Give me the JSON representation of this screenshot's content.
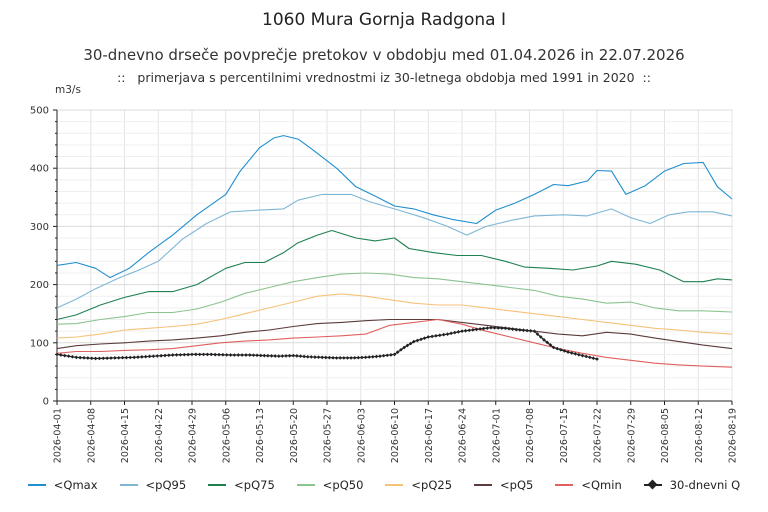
{
  "title": "1060 Mura Gornja Radgona I",
  "subtitle": "30-dnevno drseče povprečje pretokov v obdobju med 01.04.2026 in 22.07.2026",
  "subtitle2": "::   primerjava s percentilnimi vrednostmi iz 30-letnega obdobja med 1991 in 2020  ::",
  "chart_data": {
    "type": "line",
    "ylabel": "m3/s",
    "ylim": [
      0,
      500
    ],
    "yticks": [
      "0",
      "100",
      "200",
      "300",
      "400",
      "500"
    ],
    "x_start": "2026-04-01",
    "x_end": "2026-08-19",
    "xticks": [
      "2026-04-01",
      "2026-04-08",
      "2026-04-15",
      "2026-04-22",
      "2026-04-29",
      "2026-05-06",
      "2026-05-13",
      "2026-05-20",
      "2026-05-27",
      "2026-06-03",
      "2026-06-10",
      "2026-06-17",
      "2026-06-24",
      "2026-07-01",
      "2026-07-08",
      "2026-07-15",
      "2026-07-22",
      "2026-07-29",
      "2026-08-05",
      "2026-08-12",
      "2026-08-19"
    ],
    "grid": true,
    "legend_position": "bottom",
    "series": [
      {
        "name": "<Qmax",
        "color": "#1f8fcf",
        "points": [
          [
            "2026-04-01",
            233
          ],
          [
            "2026-04-05",
            238
          ],
          [
            "2026-04-09",
            228
          ],
          [
            "2026-04-12",
            212
          ],
          [
            "2026-04-16",
            228
          ],
          [
            "2026-04-20",
            255
          ],
          [
            "2026-04-25",
            285
          ],
          [
            "2026-04-30",
            320
          ],
          [
            "2026-05-06",
            355
          ],
          [
            "2026-05-09",
            395
          ],
          [
            "2026-05-13",
            435
          ],
          [
            "2026-05-16",
            452
          ],
          [
            "2026-05-18",
            456
          ],
          [
            "2026-05-21",
            450
          ],
          [
            "2026-05-24",
            432
          ],
          [
            "2026-05-29",
            400
          ],
          [
            "2026-06-02",
            368
          ],
          [
            "2026-06-06",
            352
          ],
          [
            "2026-06-10",
            335
          ],
          [
            "2026-06-14",
            330
          ],
          [
            "2026-06-18",
            320
          ],
          [
            "2026-06-22",
            312
          ],
          [
            "2026-06-27",
            305
          ],
          [
            "2026-07-01",
            328
          ],
          [
            "2026-07-05",
            340
          ],
          [
            "2026-07-09",
            355
          ],
          [
            "2026-07-13",
            372
          ],
          [
            "2026-07-16",
            370
          ],
          [
            "2026-07-20",
            378
          ],
          [
            "2026-07-22",
            396
          ],
          [
            "2026-07-25",
            395
          ],
          [
            "2026-07-28",
            355
          ],
          [
            "2026-08-01",
            370
          ],
          [
            "2026-08-05",
            395
          ],
          [
            "2026-08-09",
            408
          ],
          [
            "2026-08-13",
            410
          ],
          [
            "2026-08-16",
            368
          ],
          [
            "2026-08-19",
            347
          ]
        ]
      },
      {
        "name": "<pQ95",
        "color": "#7fb6d6",
        "points": [
          [
            "2026-04-01",
            160
          ],
          [
            "2026-04-05",
            175
          ],
          [
            "2026-04-09",
            193
          ],
          [
            "2026-04-14",
            212
          ],
          [
            "2026-04-18",
            225
          ],
          [
            "2026-04-22",
            240
          ],
          [
            "2026-04-27",
            278
          ],
          [
            "2026-05-02",
            305
          ],
          [
            "2026-05-07",
            325
          ],
          [
            "2026-05-13",
            328
          ],
          [
            "2026-05-18",
            330
          ],
          [
            "2026-05-21",
            345
          ],
          [
            "2026-05-26",
            355
          ],
          [
            "2026-06-01",
            355
          ],
          [
            "2026-06-05",
            342
          ],
          [
            "2026-06-10",
            330
          ],
          [
            "2026-06-16",
            315
          ],
          [
            "2026-06-21",
            300
          ],
          [
            "2026-06-25",
            285
          ],
          [
            "2026-06-29",
            300
          ],
          [
            "2026-07-04",
            310
          ],
          [
            "2026-07-09",
            318
          ],
          [
            "2026-07-15",
            320
          ],
          [
            "2026-07-20",
            318
          ],
          [
            "2026-07-25",
            330
          ],
          [
            "2026-07-29",
            315
          ],
          [
            "2026-08-02",
            305
          ],
          [
            "2026-08-06",
            320
          ],
          [
            "2026-08-10",
            325
          ],
          [
            "2026-08-15",
            325
          ],
          [
            "2026-08-19",
            318
          ]
        ]
      },
      {
        "name": "<pQ75",
        "color": "#1e8050",
        "points": [
          [
            "2026-04-01",
            140
          ],
          [
            "2026-04-05",
            148
          ],
          [
            "2026-04-10",
            165
          ],
          [
            "2026-04-15",
            178
          ],
          [
            "2026-04-20",
            188
          ],
          [
            "2026-04-25",
            188
          ],
          [
            "2026-04-30",
            200
          ],
          [
            "2026-05-06",
            228
          ],
          [
            "2026-05-10",
            238
          ],
          [
            "2026-05-14",
            238
          ],
          [
            "2026-05-18",
            255
          ],
          [
            "2026-05-21",
            272
          ],
          [
            "2026-05-25",
            285
          ],
          [
            "2026-05-28",
            293
          ],
          [
            "2026-06-02",
            280
          ],
          [
            "2026-06-06",
            275
          ],
          [
            "2026-06-10",
            280
          ],
          [
            "2026-06-13",
            262
          ],
          [
            "2026-06-18",
            255
          ],
          [
            "2026-06-23",
            250
          ],
          [
            "2026-06-28",
            250
          ],
          [
            "2026-07-03",
            240
          ],
          [
            "2026-07-07",
            230
          ],
          [
            "2026-07-12",
            228
          ],
          [
            "2026-07-17",
            225
          ],
          [
            "2026-07-22",
            232
          ],
          [
            "2026-07-25",
            240
          ],
          [
            "2026-07-30",
            235
          ],
          [
            "2026-08-04",
            225
          ],
          [
            "2026-08-09",
            205
          ],
          [
            "2026-08-13",
            205
          ],
          [
            "2026-08-16",
            210
          ],
          [
            "2026-08-19",
            208
          ]
        ]
      },
      {
        "name": "<pQ50",
        "color": "#8bc48f",
        "points": [
          [
            "2026-04-01",
            132
          ],
          [
            "2026-04-05",
            133
          ],
          [
            "2026-04-10",
            140
          ],
          [
            "2026-04-15",
            145
          ],
          [
            "2026-04-20",
            152
          ],
          [
            "2026-04-25",
            152
          ],
          [
            "2026-04-30",
            158
          ],
          [
            "2026-05-05",
            170
          ],
          [
            "2026-05-10",
            185
          ],
          [
            "2026-05-15",
            195
          ],
          [
            "2026-05-20",
            205
          ],
          [
            "2026-05-25",
            212
          ],
          [
            "2026-05-30",
            218
          ],
          [
            "2026-06-04",
            220
          ],
          [
            "2026-06-09",
            218
          ],
          [
            "2026-06-14",
            212
          ],
          [
            "2026-06-19",
            210
          ],
          [
            "2026-06-24",
            205
          ],
          [
            "2026-06-29",
            200
          ],
          [
            "2026-07-04",
            195
          ],
          [
            "2026-07-09",
            190
          ],
          [
            "2026-07-14",
            180
          ],
          [
            "2026-07-19",
            175
          ],
          [
            "2026-07-24",
            168
          ],
          [
            "2026-07-29",
            170
          ],
          [
            "2026-08-03",
            160
          ],
          [
            "2026-08-08",
            155
          ],
          [
            "2026-08-13",
            155
          ],
          [
            "2026-08-19",
            153
          ]
        ]
      },
      {
        "name": "<pQ25",
        "color": "#f6c27a",
        "points": [
          [
            "2026-04-01",
            108
          ],
          [
            "2026-04-05",
            110
          ],
          [
            "2026-04-10",
            115
          ],
          [
            "2026-04-15",
            122
          ],
          [
            "2026-04-20",
            125
          ],
          [
            "2026-04-25",
            128
          ],
          [
            "2026-04-30",
            132
          ],
          [
            "2026-05-05",
            140
          ],
          [
            "2026-05-10",
            150
          ],
          [
            "2026-05-15",
            160
          ],
          [
            "2026-05-20",
            170
          ],
          [
            "2026-05-25",
            180
          ],
          [
            "2026-05-30",
            184
          ],
          [
            "2026-06-04",
            180
          ],
          [
            "2026-06-09",
            174
          ],
          [
            "2026-06-14",
            168
          ],
          [
            "2026-06-19",
            165
          ],
          [
            "2026-06-24",
            165
          ],
          [
            "2026-06-29",
            160
          ],
          [
            "2026-07-04",
            155
          ],
          [
            "2026-07-09",
            150
          ],
          [
            "2026-07-14",
            145
          ],
          [
            "2026-07-19",
            140
          ],
          [
            "2026-07-24",
            135
          ],
          [
            "2026-07-29",
            130
          ],
          [
            "2026-08-03",
            125
          ],
          [
            "2026-08-08",
            122
          ],
          [
            "2026-08-13",
            118
          ],
          [
            "2026-08-19",
            115
          ]
        ]
      },
      {
        "name": "<pQ5",
        "color": "#5b3b3b",
        "points": [
          [
            "2026-04-01",
            90
          ],
          [
            "2026-04-05",
            95
          ],
          [
            "2026-04-10",
            98
          ],
          [
            "2026-04-15",
            100
          ],
          [
            "2026-04-20",
            103
          ],
          [
            "2026-04-25",
            105
          ],
          [
            "2026-04-30",
            108
          ],
          [
            "2026-05-05",
            112
          ],
          [
            "2026-05-10",
            118
          ],
          [
            "2026-05-15",
            122
          ],
          [
            "2026-05-20",
            128
          ],
          [
            "2026-05-25",
            133
          ],
          [
            "2026-05-30",
            135
          ],
          [
            "2026-06-04",
            138
          ],
          [
            "2026-06-09",
            140
          ],
          [
            "2026-06-14",
            140
          ],
          [
            "2026-06-19",
            140
          ],
          [
            "2026-06-24",
            135
          ],
          [
            "2026-06-29",
            130
          ],
          [
            "2026-07-04",
            125
          ],
          [
            "2026-07-09",
            120
          ],
          [
            "2026-07-14",
            115
          ],
          [
            "2026-07-19",
            112
          ],
          [
            "2026-07-24",
            118
          ],
          [
            "2026-07-29",
            115
          ],
          [
            "2026-08-03",
            108
          ],
          [
            "2026-08-08",
            102
          ],
          [
            "2026-08-13",
            96
          ],
          [
            "2026-08-19",
            90
          ]
        ]
      },
      {
        "name": "<Qmin",
        "color": "#e06060",
        "points": [
          [
            "2026-04-01",
            82
          ],
          [
            "2026-04-05",
            85
          ],
          [
            "2026-04-10",
            85
          ],
          [
            "2026-04-15",
            87
          ],
          [
            "2026-04-20",
            88
          ],
          [
            "2026-04-25",
            90
          ],
          [
            "2026-04-30",
            95
          ],
          [
            "2026-05-05",
            100
          ],
          [
            "2026-05-10",
            103
          ],
          [
            "2026-05-15",
            105
          ],
          [
            "2026-05-20",
            108
          ],
          [
            "2026-05-25",
            110
          ],
          [
            "2026-05-30",
            112
          ],
          [
            "2026-06-04",
            115
          ],
          [
            "2026-06-09",
            130
          ],
          [
            "2026-06-14",
            135
          ],
          [
            "2026-06-19",
            140
          ],
          [
            "2026-06-24",
            132
          ],
          [
            "2026-06-29",
            120
          ],
          [
            "2026-07-04",
            110
          ],
          [
            "2026-07-09",
            100
          ],
          [
            "2026-07-14",
            90
          ],
          [
            "2026-07-19",
            82
          ],
          [
            "2026-07-24",
            75
          ],
          [
            "2026-07-29",
            70
          ],
          [
            "2026-08-03",
            65
          ],
          [
            "2026-08-08",
            62
          ],
          [
            "2026-08-13",
            60
          ],
          [
            "2026-08-19",
            58
          ]
        ]
      },
      {
        "name": "30-dnevni Q",
        "color": "#222222",
        "markers": true,
        "points": [
          [
            "2026-04-01",
            80
          ],
          [
            "2026-04-05",
            75
          ],
          [
            "2026-04-09",
            73
          ],
          [
            "2026-04-13",
            74
          ],
          [
            "2026-04-17",
            75
          ],
          [
            "2026-04-21",
            77
          ],
          [
            "2026-04-25",
            79
          ],
          [
            "2026-04-29",
            80
          ],
          [
            "2026-05-03",
            80
          ],
          [
            "2026-05-07",
            79
          ],
          [
            "2026-05-11",
            79
          ],
          [
            "2026-05-14",
            78
          ],
          [
            "2026-05-17",
            77
          ],
          [
            "2026-05-20",
            78
          ],
          [
            "2026-05-23",
            76
          ],
          [
            "2026-05-26",
            75
          ],
          [
            "2026-05-29",
            74
          ],
          [
            "2026-06-01",
            74
          ],
          [
            "2026-06-04",
            75
          ],
          [
            "2026-06-07",
            77
          ],
          [
            "2026-06-10",
            80
          ],
          [
            "2026-06-12",
            92
          ],
          [
            "2026-06-14",
            102
          ],
          [
            "2026-06-17",
            110
          ],
          [
            "2026-06-21",
            115
          ],
          [
            "2026-06-24",
            120
          ],
          [
            "2026-06-27",
            123
          ],
          [
            "2026-06-30",
            126
          ],
          [
            "2026-07-03",
            125
          ],
          [
            "2026-07-06",
            122
          ],
          [
            "2026-07-09",
            120
          ],
          [
            "2026-07-11",
            105
          ],
          [
            "2026-07-13",
            92
          ],
          [
            "2026-07-16",
            84
          ],
          [
            "2026-07-19",
            78
          ],
          [
            "2026-07-22",
            72
          ]
        ]
      }
    ]
  }
}
